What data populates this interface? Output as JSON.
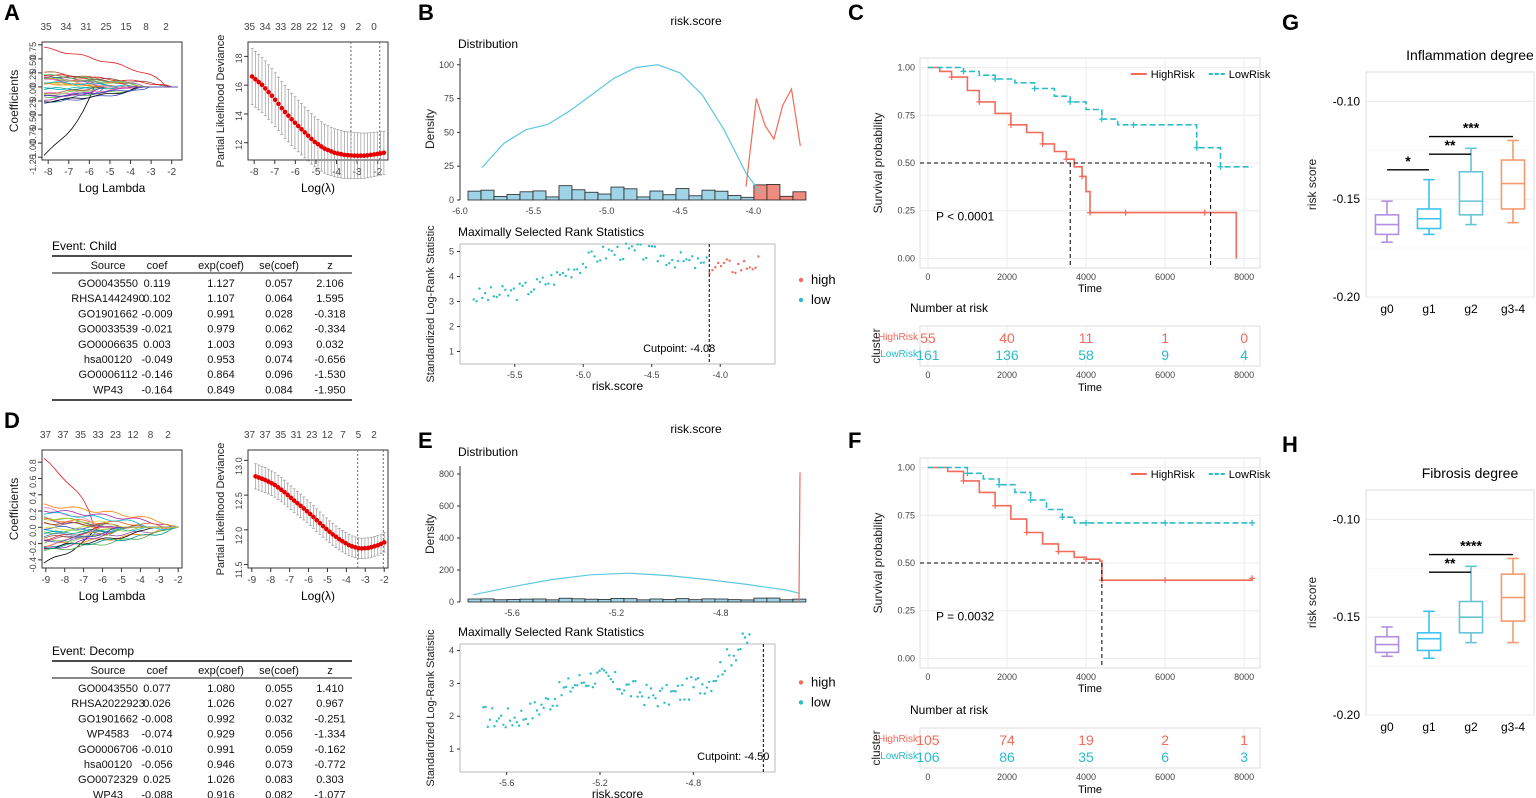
{
  "colors": {
    "high": "#f26b5b",
    "low": "#2bbcc8",
    "density_low": "#5ec8e0",
    "bar_low": "#9fd3e6",
    "bar_high": "#f08b80",
    "g0": "#b28fe0",
    "g1": "#3ec2f2",
    "g2": "#66c4d6",
    "g3": "#f39b6e",
    "lambda": "#e60000"
  },
  "panel_labels": [
    "A",
    "B",
    "C",
    "D",
    "E",
    "F",
    "G",
    "H"
  ],
  "chart_data": [
    {
      "id": "A1",
      "type": "line",
      "title": "",
      "xlabel": "Log Lambda",
      "ylabel": "Coefficients",
      "x_ticks": [
        "-8",
        "-7",
        "-6",
        "-5",
        "-4",
        "-3",
        "-2"
      ],
      "y_ticks": [
        "-1.25",
        "-1.00",
        "-0.75",
        "-0.50",
        "-0.25",
        "0.00",
        "0.25",
        "0.50",
        "0.75"
      ],
      "top_ticks": [
        "35",
        "34",
        "31",
        "25",
        "15",
        "8",
        "2"
      ],
      "xlim": [
        -8.3,
        -1.5
      ],
      "ylim": [
        -1.3,
        0.8
      ]
    },
    {
      "id": "A2",
      "type": "line",
      "xlabel": "Log(λ)",
      "ylabel": "Partial Likelihood Deviance",
      "x_ticks": [
        "-8",
        "-7",
        "-6",
        "-5",
        "-4",
        "-3",
        "-2"
      ],
      "y_ticks": [
        "12",
        "14",
        "16",
        "18"
      ],
      "top_ticks": [
        "35",
        "34",
        "33",
        "28",
        "22",
        "12",
        "9",
        "2",
        "0"
      ],
      "xlim": [
        -8.3,
        -1.5
      ],
      "ylim": [
        10.8,
        19
      ],
      "x": [
        -8.1,
        -7.6,
        -7.1,
        -6.6,
        -6.1,
        -5.6,
        -5.1,
        -4.6,
        -4.1,
        -3.6,
        -3.1,
        -2.6,
        -2.1,
        -1.7
      ],
      "values": [
        16.6,
        16.0,
        15.2,
        14.3,
        13.5,
        12.8,
        12.1,
        11.6,
        11.3,
        11.15,
        11.1,
        11.1,
        11.2,
        11.3
      ],
      "vlines": [
        -3.3,
        -1.9
      ]
    },
    {
      "id": "B",
      "type": "area",
      "title": "risk.score",
      "subtitle": "Distribution",
      "ylabel": "Density",
      "y_ticks": [
        "0",
        "25",
        "50",
        "75",
        "100"
      ],
      "x_ticks": [
        "-6.0",
        "-5.5",
        "-5.0",
        "-4.5",
        "-4.0"
      ],
      "xlim": [
        -6.0,
        -3.6
      ],
      "ylim": [
        0,
        105
      ],
      "low_x": [
        -5.85,
        -5.7,
        -5.55,
        -5.4,
        -5.25,
        -5.1,
        -4.95,
        -4.8,
        -4.65,
        -4.5,
        -4.35,
        -4.2,
        -4.05,
        -3.95
      ],
      "low_values": [
        24,
        42,
        52,
        56,
        66,
        78,
        90,
        98,
        100,
        94,
        78,
        52,
        20,
        5
      ],
      "high_x": [
        -4.05,
        -3.98,
        -3.92,
        -3.86,
        -3.8,
        -3.74,
        -3.68
      ],
      "high_values": [
        10,
        75,
        55,
        45,
        70,
        82,
        40
      ]
    },
    {
      "id": "B2",
      "type": "scatter",
      "subtitle": "Maximally Selected Rank Statistics",
      "xlabel": "risk.score",
      "ylabel": "Standardized Log-Rank Statistic",
      "x_ticks": [
        "-5.5",
        "-5.0",
        "-4.5",
        "-4.0"
      ],
      "y_ticks": [
        "1",
        "2",
        "3",
        "4",
        "5"
      ],
      "xlim": [
        -5.9,
        -3.6
      ],
      "ylim": [
        0.5,
        5.3
      ],
      "cutpoint": -4.08,
      "cutpoint_label": "Cutpoint: -4.08",
      "legend": [
        "high",
        "low"
      ]
    },
    {
      "id": "C",
      "type": "line",
      "ylabel": "Survival probability",
      "xlabel": "Time",
      "x_ticks": [
        "0",
        "2000",
        "4000",
        "6000",
        "8000"
      ],
      "y_ticks": [
        "0.00",
        "0.25",
        "0.50",
        "0.75",
        "1.00"
      ],
      "xlim": [
        -200,
        8400
      ],
      "ylim": [
        -0.05,
        1.05
      ],
      "legend": [
        "HighRisk",
        "LowRisk"
      ],
      "pvalue": "P < 0.0001",
      "series": [
        {
          "name": "HighRisk",
          "x": [
            0,
            300,
            600,
            1000,
            1300,
            1700,
            2100,
            2500,
            2900,
            3200,
            3500,
            3700,
            3900,
            4000,
            4100,
            4300,
            5000,
            6000,
            7000,
            7800
          ],
          "values": [
            1.0,
            0.98,
            0.95,
            0.88,
            0.82,
            0.76,
            0.7,
            0.66,
            0.6,
            0.56,
            0.52,
            0.48,
            0.43,
            0.35,
            0.24,
            0.24,
            0.24,
            0.24,
            0.24,
            0.0
          ]
        },
        {
          "name": "LowRisk",
          "x": [
            0,
            500,
            900,
            1300,
            1700,
            2200,
            2700,
            3200,
            3600,
            4000,
            4400,
            4800,
            5200,
            6000,
            6800,
            7200,
            7400,
            8200
          ],
          "values": [
            1.0,
            1.0,
            0.98,
            0.96,
            0.94,
            0.92,
            0.89,
            0.85,
            0.82,
            0.78,
            0.73,
            0.7,
            0.7,
            0.7,
            0.58,
            0.58,
            0.48,
            0.48
          ]
        }
      ],
      "median_high": 3600,
      "median_low": 7150,
      "risk_table": {
        "title": "Number at risk",
        "ylabel": "cluster",
        "xlabel": "Time",
        "rows": [
          {
            "name": "HighRisk",
            "values": [
              "55",
              "40",
              "11",
              "1",
              "0"
            ]
          },
          {
            "name": "LowRisk",
            "values": [
              "161",
              "136",
              "58",
              "9",
              "4"
            ]
          }
        ]
      }
    },
    {
      "id": "G",
      "type": "box",
      "title": "Inflammation degree",
      "ylabel": "risk score",
      "categories": [
        "g0",
        "g1",
        "g2",
        "g3-4"
      ],
      "y_ticks": [
        "-0.10",
        "-0.15",
        "-0.20"
      ],
      "ylim": [
        -0.2,
        -0.085
      ],
      "boxes": [
        {
          "min": -0.172,
          "q1": -0.168,
          "median": -0.163,
          "q3": -0.158,
          "max": -0.151
        },
        {
          "min": -0.168,
          "q1": -0.165,
          "median": -0.16,
          "q3": -0.155,
          "max": -0.14
        },
        {
          "min": -0.163,
          "q1": -0.158,
          "median": -0.151,
          "q3": -0.136,
          "max": -0.124
        },
        {
          "min": -0.162,
          "q1": -0.155,
          "median": -0.142,
          "q3": -0.13,
          "max": -0.12
        }
      ],
      "brackets": [
        {
          "from": "g0",
          "to": "g1",
          "label": "*",
          "y": -0.135
        },
        {
          "from": "g1",
          "to": "g2",
          "label": "**",
          "y": -0.127
        },
        {
          "from": "g1",
          "to": "g3-4",
          "label": "***",
          "y": -0.118
        }
      ]
    },
    {
      "id": "D1",
      "type": "line",
      "xlabel": "Log Lambda",
      "ylabel": "Coefficients",
      "x_ticks": [
        "-9",
        "-8",
        "-7",
        "-6",
        "-5",
        "-4",
        "-3",
        "-2"
      ],
      "y_ticks": [
        "-0.4",
        "-0.2",
        "0.0",
        "0.2",
        "0.4",
        "0.6",
        "0.8"
      ],
      "top_ticks": [
        "37",
        "37",
        "35",
        "33",
        "23",
        "12",
        "8",
        "2"
      ],
      "xlim": [
        -9.2,
        -1.8
      ],
      "ylim": [
        -0.5,
        0.95
      ]
    },
    {
      "id": "D2",
      "type": "line",
      "xlabel": "Log(λ)",
      "ylabel": "Partial Likelihood Deviance",
      "x_ticks": [
        "-9",
        "-8",
        "-7",
        "-6",
        "-5",
        "-4",
        "-3",
        "-2"
      ],
      "y_ticks": [
        "11.5",
        "12.0",
        "12.5",
        "13.0"
      ],
      "top_ticks": [
        "37",
        "37",
        "35",
        "31",
        "23",
        "12",
        "7",
        "5",
        "2"
      ],
      "xlim": [
        -9.2,
        -1.8
      ],
      "ylim": [
        11.45,
        13.15
      ],
      "x": [
        -8.8,
        -8.3,
        -7.8,
        -7.3,
        -6.8,
        -6.3,
        -5.8,
        -5.3,
        -4.8,
        -4.3,
        -3.8,
        -3.3,
        -2.8,
        -2.3,
        -2.0
      ],
      "values": [
        12.77,
        12.72,
        12.65,
        12.55,
        12.43,
        12.32,
        12.2,
        12.07,
        11.95,
        11.85,
        11.77,
        11.73,
        11.74,
        11.78,
        11.82
      ],
      "vlines": [
        -3.4,
        -2.05
      ]
    },
    {
      "id": "E",
      "type": "area",
      "title": "risk.score",
      "subtitle": "Distribution",
      "ylabel": "Density",
      "y_ticks": [
        "0",
        "200",
        "400",
        "600",
        "800"
      ],
      "x_ticks": [
        "-5.6",
        "-5.2",
        "-4.8"
      ],
      "xlim": [
        -5.8,
        -4.45
      ],
      "ylim": [
        0,
        850
      ],
      "low_x": [
        -5.75,
        -5.6,
        -5.45,
        -5.3,
        -5.15,
        -5.0,
        -4.85,
        -4.7,
        -4.55,
        -4.5
      ],
      "low_values": [
        45,
        95,
        140,
        170,
        180,
        165,
        140,
        110,
        75,
        55
      ],
      "high_x": [
        -4.5,
        -4.498,
        -4.496
      ],
      "high_values": [
        0,
        400,
        810
      ]
    },
    {
      "id": "E2",
      "type": "scatter",
      "subtitle": "Maximally Selected Rank Statistics",
      "xlabel": "risk.score",
      "ylabel": "Standardized Log-Rank Statistic",
      "x_ticks": [
        "-5.6",
        "-5.2",
        "-4.8"
      ],
      "y_ticks": [
        "1",
        "2",
        "3",
        "4"
      ],
      "xlim": [
        -5.8,
        -4.45
      ],
      "ylim": [
        0.3,
        4.2
      ],
      "cutpoint": -4.5,
      "cutpoint_label": "Cutpoint: -4.50",
      "legend": [
        "high",
        "low"
      ]
    },
    {
      "id": "F",
      "type": "line",
      "ylabel": "Survival probability",
      "xlabel": "Time",
      "x_ticks": [
        "0",
        "2000",
        "4000",
        "6000",
        "8000"
      ],
      "y_ticks": [
        "0.00",
        "0.25",
        "0.50",
        "0.75",
        "1.00"
      ],
      "xlim": [
        -200,
        8400
      ],
      "ylim": [
        -0.05,
        1.05
      ],
      "legend": [
        "HighRisk",
        "LowRisk"
      ],
      "pvalue": "P = 0.0032",
      "series": [
        {
          "name": "HighRisk",
          "x": [
            0,
            500,
            900,
            1300,
            1700,
            2100,
            2500,
            2900,
            3300,
            3700,
            4000,
            4350,
            4400,
            5000,
            6000,
            7000,
            8200
          ],
          "values": [
            1.0,
            0.98,
            0.93,
            0.87,
            0.8,
            0.73,
            0.66,
            0.6,
            0.56,
            0.53,
            0.52,
            0.51,
            0.41,
            0.41,
            0.41,
            0.41,
            0.42
          ]
        },
        {
          "name": "LowRisk",
          "x": [
            0,
            600,
            1000,
            1400,
            1800,
            2200,
            2600,
            3000,
            3400,
            3700,
            4000,
            5000,
            6000,
            7000,
            8200
          ],
          "values": [
            1.0,
            1.0,
            0.97,
            0.94,
            0.91,
            0.87,
            0.83,
            0.78,
            0.74,
            0.71,
            0.71,
            0.71,
            0.71,
            0.71,
            0.71
          ]
        }
      ],
      "median_high": 4400,
      "risk_table": {
        "title": "Number at risk",
        "ylabel": "cluster",
        "xlabel": "Time",
        "rows": [
          {
            "name": "HighRisk",
            "values": [
              "105",
              "74",
              "19",
              "2",
              "1"
            ]
          },
          {
            "name": "LowRisk",
            "values": [
              "106",
              "86",
              "35",
              "6",
              "3"
            ]
          }
        ]
      }
    },
    {
      "id": "H",
      "type": "box",
      "title": "Fibrosis degree",
      "ylabel": "risk score",
      "categories": [
        "g0",
        "g1",
        "g2",
        "g3-4"
      ],
      "y_ticks": [
        "-0.10",
        "-0.15",
        "-0.20"
      ],
      "ylim": [
        -0.2,
        -0.085
      ],
      "boxes": [
        {
          "min": -0.17,
          "q1": -0.168,
          "median": -0.164,
          "q3": -0.16,
          "max": -0.155
        },
        {
          "min": -0.171,
          "q1": -0.167,
          "median": -0.161,
          "q3": -0.158,
          "max": -0.147
        },
        {
          "min": -0.163,
          "q1": -0.158,
          "median": -0.15,
          "q3": -0.142,
          "max": -0.124
        },
        {
          "min": -0.163,
          "q1": -0.152,
          "median": -0.14,
          "q3": -0.128,
          "max": -0.12
        }
      ],
      "brackets": [
        {
          "from": "g1",
          "to": "g2",
          "label": "**",
          "y": -0.127
        },
        {
          "from": "g1",
          "to": "g3-4",
          "label": "****",
          "y": -0.118
        }
      ]
    }
  ],
  "tables": [
    {
      "title": "Event: Child",
      "headers": [
        "Source",
        "coef",
        "exp(coef)",
        "se(coef)",
        "z"
      ],
      "rows": [
        [
          "GO0043550",
          "0.119",
          "1.127",
          "0.057",
          "2.106"
        ],
        [
          "RHSA1442490",
          "0.102",
          "1.107",
          "0.064",
          "1.595"
        ],
        [
          "GO1901662",
          "-0.009",
          "0.991",
          "0.028",
          "-0.318"
        ],
        [
          "GO0033539",
          "-0.021",
          "0.979",
          "0.062",
          "-0.334"
        ],
        [
          "GO0006635",
          "0.003",
          "1.003",
          "0.093",
          "0.032"
        ],
        [
          "hsa00120",
          "-0.049",
          "0.953",
          "0.074",
          "-0.656"
        ],
        [
          "GO0006112",
          "-0.146",
          "0.864",
          "0.096",
          "-1.530"
        ],
        [
          "WP43",
          "-0.164",
          "0.849",
          "0.084",
          "-1.950"
        ]
      ]
    },
    {
      "title": "Event: Decomp",
      "headers": [
        "Source",
        "coef",
        "exp(coef)",
        "se(coef)",
        "z"
      ],
      "rows": [
        [
          "GO0043550",
          "0.077",
          "1.080",
          "0.055",
          "1.410"
        ],
        [
          "RHSA2022923",
          "0.026",
          "1.026",
          "0.027",
          "0.967"
        ],
        [
          "GO1901662",
          "-0.008",
          "0.992",
          "0.032",
          "-0.251"
        ],
        [
          "WP4583",
          "-0.074",
          "0.929",
          "0.056",
          "-1.334"
        ],
        [
          "GO0006706",
          "-0.010",
          "0.991",
          "0.059",
          "-0.162"
        ],
        [
          "hsa00120",
          "-0.056",
          "0.946",
          "0.073",
          "-0.772"
        ],
        [
          "GO0072329",
          "0.025",
          "1.026",
          "0.083",
          "0.303"
        ],
        [
          "WP43",
          "-0.088",
          "0.916",
          "0.082",
          "-1.077"
        ]
      ]
    }
  ]
}
